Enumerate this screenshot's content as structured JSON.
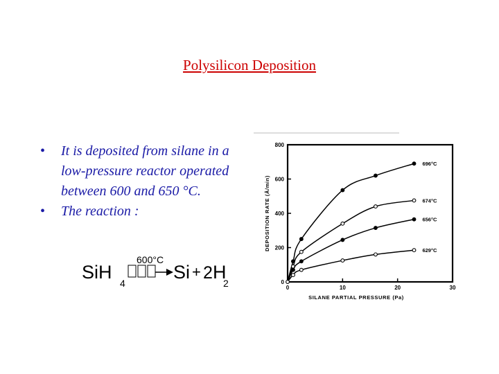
{
  "title": "Polysilicon Deposition",
  "bullets": [
    "It is deposited from silane in a low-pressure reactor operated between 600 and 650 °C.",
    "The reaction :"
  ],
  "bullet_symbol": "•",
  "equation": {
    "reactant": "SiH",
    "reactant_sub": "4",
    "condition": "600°C",
    "product1": "Si",
    "plus": "+",
    "coef": "2",
    "product2": "H",
    "product2_sub": "2"
  },
  "colors": {
    "title": "#cc0000",
    "bullets": "#1a1aa6"
  },
  "chart_data": {
    "type": "line",
    "xlabel": "SILANE PARTIAL PRESSURE (Pa)",
    "ylabel": "DEPOSITION RATE (Å/min)",
    "xlim": [
      0,
      30
    ],
    "ylim": [
      0,
      800
    ],
    "xticks": [
      0,
      10,
      20,
      30
    ],
    "yticks": [
      0,
      200,
      400,
      600,
      800
    ],
    "grid": false,
    "series": [
      {
        "name": "696°C",
        "marker": "filled",
        "x": [
          0,
          1,
          2.5,
          10,
          16,
          23
        ],
        "y": [
          0,
          120,
          250,
          535,
          620,
          690
        ]
      },
      {
        "name": "674°C",
        "marker": "open",
        "x": [
          0,
          1,
          2.5,
          10,
          16,
          23
        ],
        "y": [
          0,
          90,
          175,
          340,
          440,
          475
        ]
      },
      {
        "name": "656°C",
        "marker": "filled",
        "x": [
          0,
          1,
          2.5,
          10,
          16,
          23
        ],
        "y": [
          0,
          70,
          120,
          245,
          315,
          365
        ]
      },
      {
        "name": "629°C",
        "marker": "open",
        "x": [
          0,
          1,
          2.5,
          10,
          16,
          23
        ],
        "y": [
          0,
          40,
          70,
          125,
          160,
          185
        ]
      }
    ]
  }
}
